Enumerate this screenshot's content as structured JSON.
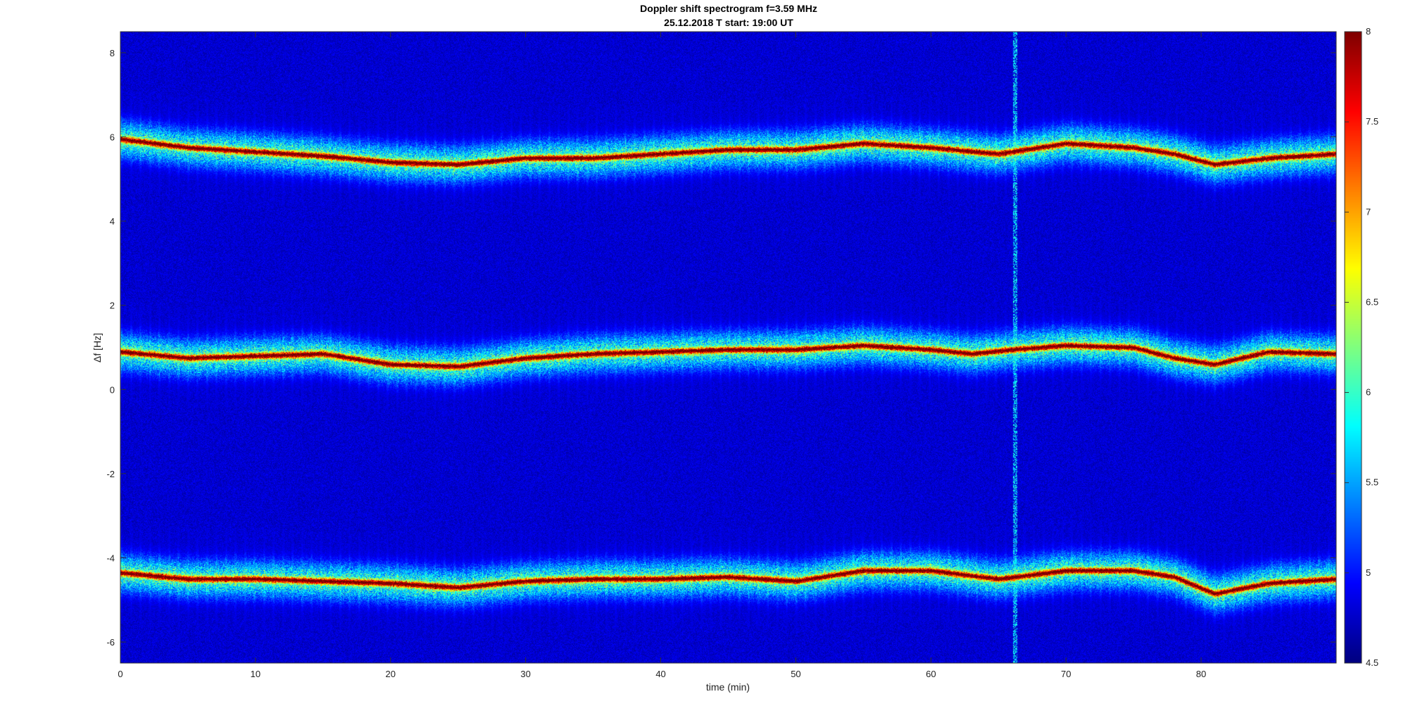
{
  "chart_data": {
    "type": "heatmap",
    "title": "Doppler shift spectrogram f=3.59 MHz",
    "subtitle": "25.12.2018   T start: 19:00 UT",
    "xlabel": "time (min)",
    "ylabel": "Δf [Hz]",
    "xlim": [
      0,
      90
    ],
    "ylim": [
      -6.5,
      8.5
    ],
    "xticks": [
      "0",
      "10",
      "20",
      "30",
      "40",
      "50",
      "60",
      "70",
      "80"
    ],
    "yticks": [
      "8",
      "6",
      "4",
      "2",
      "0",
      "-2",
      "-4",
      "-6"
    ],
    "colorbar": {
      "colormap": "jet",
      "range": [
        4.5,
        8
      ],
      "ticks": [
        "8",
        "7.5",
        "7",
        "6.5",
        "6",
        "5.5",
        "5",
        "4.5"
      ]
    },
    "series": [
      {
        "x": [
          0,
          5,
          10,
          15,
          20,
          25,
          30,
          35,
          40,
          45,
          50,
          55,
          60,
          65,
          70,
          75,
          78,
          81,
          85,
          90
        ],
        "y": [
          5.95,
          5.75,
          5.65,
          5.55,
          5.4,
          5.35,
          5.5,
          5.5,
          5.6,
          5.7,
          5.7,
          5.85,
          5.75,
          5.6,
          5.85,
          5.75,
          5.6,
          5.35,
          5.5,
          5.6
        ]
      },
      {
        "x": [
          0,
          5,
          10,
          15,
          20,
          25,
          30,
          35,
          40,
          45,
          50,
          55,
          60,
          63,
          66,
          70,
          75,
          78,
          81,
          85,
          90
        ],
        "y": [
          0.9,
          0.75,
          0.8,
          0.85,
          0.6,
          0.55,
          0.75,
          0.85,
          0.9,
          0.95,
          0.95,
          1.05,
          0.95,
          0.85,
          0.95,
          1.05,
          1.0,
          0.75,
          0.6,
          0.9,
          0.85
        ]
      },
      {
        "x": [
          0,
          5,
          10,
          15,
          20,
          25,
          30,
          35,
          40,
          45,
          50,
          55,
          60,
          65,
          70,
          75,
          78,
          81,
          85,
          90
        ],
        "y": [
          -4.35,
          -4.5,
          -4.5,
          -4.55,
          -4.6,
          -4.7,
          -4.55,
          -4.5,
          -4.5,
          -4.45,
          -4.55,
          -4.3,
          -4.3,
          -4.5,
          -4.3,
          -4.3,
          -4.45,
          -4.85,
          -4.6,
          -4.5
        ]
      }
    ],
    "vertical_interference_min": 66.2
  }
}
